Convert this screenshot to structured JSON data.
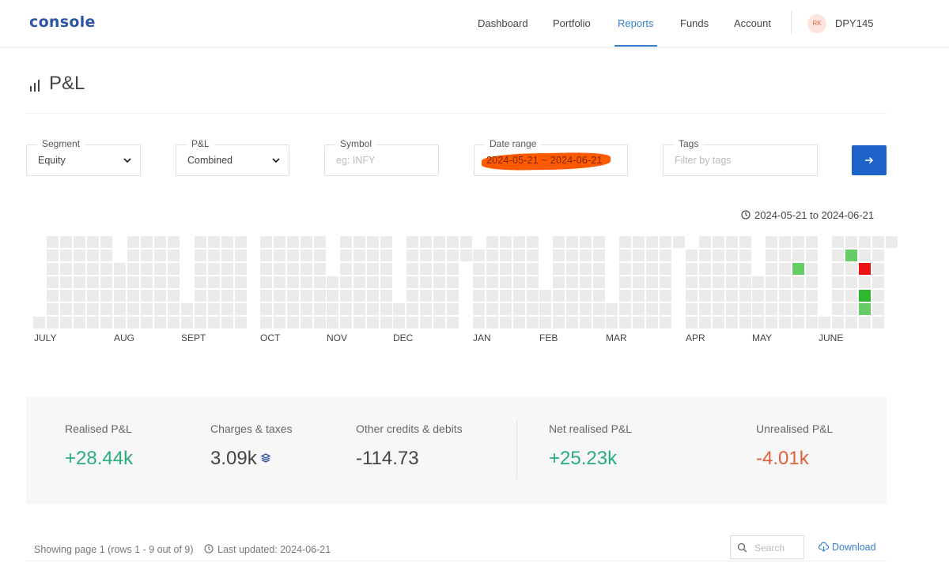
{
  "header": {
    "logo": "console",
    "nav": [
      {
        "label": "Dashboard",
        "active": false
      },
      {
        "label": "Portfolio",
        "active": false
      },
      {
        "label": "Reports",
        "active": true
      },
      {
        "label": "Funds",
        "active": false
      },
      {
        "label": "Account",
        "active": false
      }
    ],
    "avatar_initials": "RK",
    "user_id": "DPY145"
  },
  "page": {
    "title": "P&L",
    "title_icon": "bar-chart-icon"
  },
  "filters": {
    "segment": {
      "label": "Segment",
      "value": "Equity"
    },
    "pnl": {
      "label": "P&L",
      "value": "Combined"
    },
    "symbol": {
      "label": "Symbol",
      "placeholder": "eg: INFY"
    },
    "date_range": {
      "label": "Date range",
      "value": "2024-05-21 ~ 2024-06-21",
      "redaction_color": "#ff5a00"
    },
    "tags": {
      "label": "Tags",
      "placeholder": "Filter by tags"
    },
    "submit_icon": "arrow-right-icon"
  },
  "range_caption": "2024-05-21 to 2024-06-21",
  "heatmap": {
    "months": [
      "JULY",
      "AUG",
      "SEPT",
      "OCT",
      "NOV",
      "DEC",
      "JAN",
      "FEB",
      "MAR",
      "APR",
      "MAY",
      "JUNE"
    ],
    "colors": {
      "empty": "#ebebeb",
      "profit_light": "#66cc66",
      "profit_dark": "#2eb82e",
      "loss": "#ee1111"
    },
    "highlighted_days": [
      {
        "month": "MAY",
        "result": "profit"
      },
      {
        "month": "JUNE",
        "result": "profit"
      },
      {
        "month": "JUNE",
        "result": "loss"
      },
      {
        "month": "JUNE",
        "result": "profit"
      },
      {
        "month": "JUNE",
        "result": "profit"
      }
    ]
  },
  "summary": {
    "realised": {
      "label": "Realised P&L",
      "value": "+28.44k"
    },
    "charges": {
      "label": "Charges & taxes",
      "value": "3.09k"
    },
    "other": {
      "label": "Other credits & debits",
      "value": "-114.73"
    },
    "net": {
      "label": "Net realised P&L",
      "value": "+25.23k"
    },
    "unrealised": {
      "label": "Unrealised P&L",
      "value": "-4.01k"
    },
    "colors": {
      "positive": "#27ae7a",
      "negative": "#e25f3b",
      "neutral": "#444444"
    }
  },
  "footer": {
    "showing": "Showing page 1 (rows 1 - 9 out of 9)",
    "last_updated": "Last updated: 2024-06-21",
    "search_placeholder": "Search",
    "download": "Download"
  }
}
